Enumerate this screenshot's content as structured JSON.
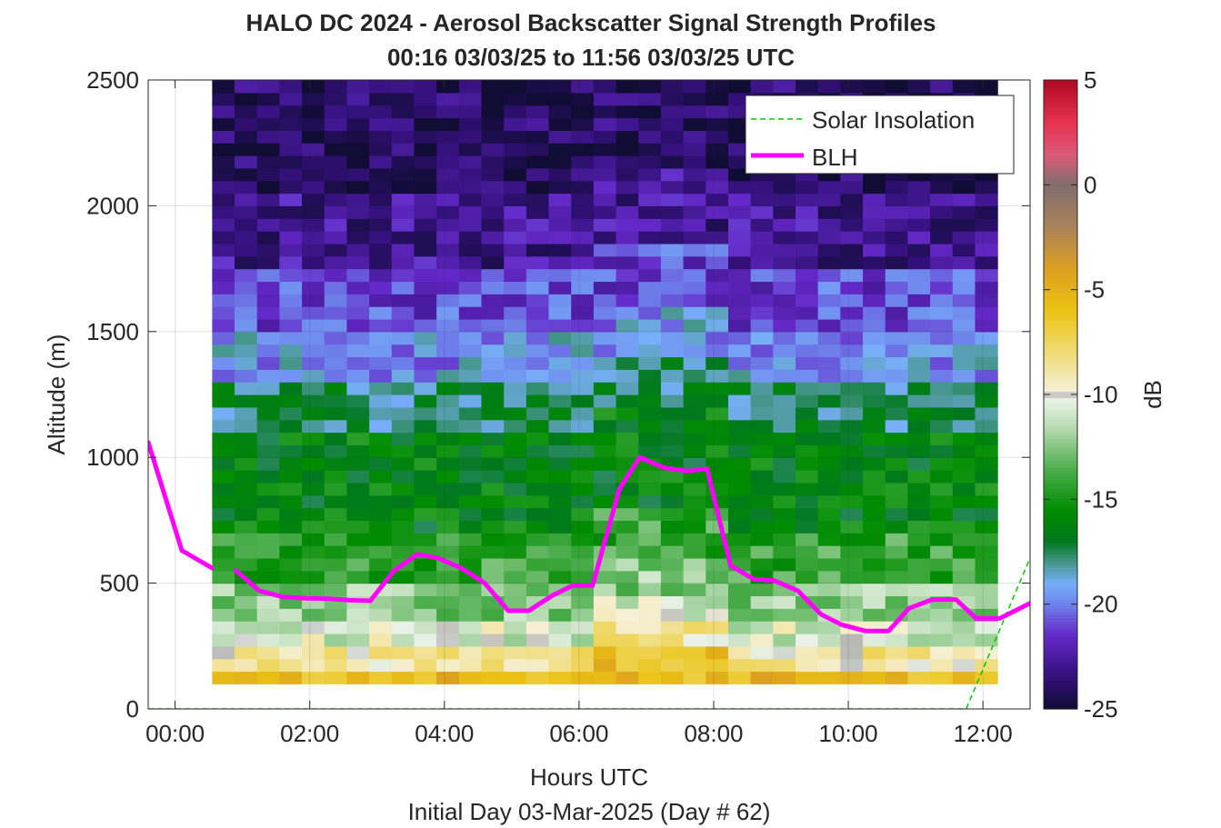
{
  "chart_data": {
    "type": "heatmap",
    "title": "HALO DC 2024 - Aerosol Backscatter Signal Strength Profiles",
    "subtitle": "00:16 03/03/25 to 11:56 03/03/25  UTC",
    "xlabel": "Hours UTC",
    "xlabel2": "Initial Day 03-Mar-2025 (Day # 62)",
    "ylabel": "Altitude (m)",
    "xlim": [
      -0.4,
      12.7
    ],
    "ylim": [
      0,
      2500
    ],
    "x_ticks": [
      0,
      2,
      4,
      6,
      8,
      10,
      12
    ],
    "x_tick_labels": [
      "00:00",
      "02:00",
      "04:00",
      "06:00",
      "08:00",
      "10:00",
      "12:00"
    ],
    "y_ticks": [
      0,
      500,
      1000,
      1500,
      2000,
      2500
    ],
    "y_tick_labels": [
      "0",
      "500",
      "1000",
      "1500",
      "2000",
      "2500"
    ],
    "grid": true,
    "legend_position": "top-right",
    "colorbar": {
      "label": "dB",
      "clim": [
        -25,
        5
      ],
      "ticks": [
        5,
        0,
        -5,
        -10,
        -15,
        -20,
        -25
      ],
      "tick_labels": [
        "5",
        "0",
        "-5",
        "-10",
        "-15",
        "-20",
        "-25"
      ]
    },
    "heatmap": {
      "x_start": 0.55,
      "x_end": 12.2,
      "dt_hours": 0.3333,
      "y_bottom": 100,
      "y_top": 2500,
      "dz_m": 50
    },
    "series": [
      {
        "name": "Solar Insolation",
        "color": "#00c800",
        "style": "dashed",
        "x": [
          -0.4,
          11.75,
          12.7
        ],
        "y": [
          0,
          0,
          600
        ]
      },
      {
        "name": "BLH",
        "color": "#ff00ff",
        "style": "solid",
        "segments": [
          {
            "x": [
              -0.4,
              0.1,
              0.55
            ],
            "y": [
              1060,
              630,
              560
            ]
          },
          {
            "x": [
              0.9,
              1.25,
              1.6,
              1.95,
              2.3,
              2.6,
              2.9,
              3.25,
              3.6,
              3.9,
              4.25,
              4.6,
              4.95,
              5.25,
              5.6,
              5.9,
              6.2,
              6.6,
              6.9,
              7.25,
              7.6,
              7.9,
              8.25,
              8.6,
              8.9,
              9.25,
              9.6,
              9.9,
              10.25,
              10.6,
              10.9,
              11.25,
              11.6,
              11.9,
              12.25,
              12.7
            ],
            "y": [
              550,
              470,
              445,
              440,
              438,
              432,
              430,
              550,
              615,
              600,
              560,
              500,
              390,
              390,
              450,
              490,
              490,
              875,
              1000,
              960,
              945,
              955,
              570,
              515,
              510,
              470,
              375,
              335,
              310,
              310,
              400,
              435,
              435,
              360,
              360,
              420
            ]
          }
        ]
      }
    ]
  }
}
